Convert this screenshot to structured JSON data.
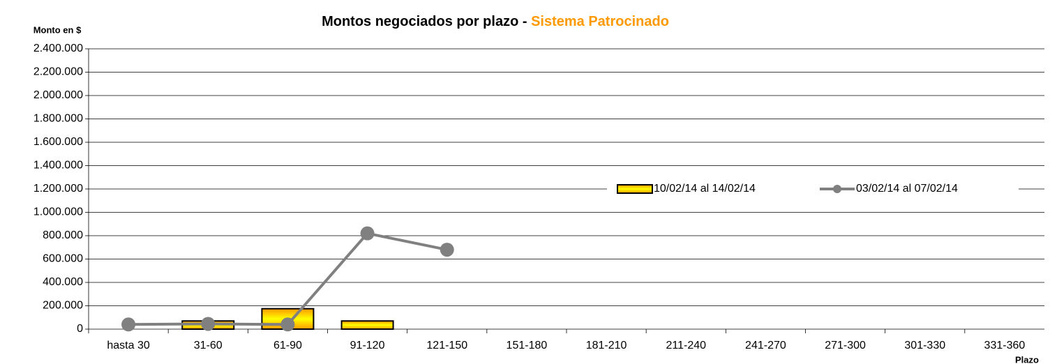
{
  "chart_data": {
    "type": "bar_line",
    "title": "Montos negociados por plazo -",
    "title_highlight": "Sistema Patrocinado",
    "title_highlight_color": "#ff9900",
    "y_label": "Monto en $",
    "x_label": "Plazo",
    "categories": [
      "hasta 30",
      "31-60",
      "61-90",
      "91-120",
      "121-150",
      "151-180",
      "181-210",
      "211-240",
      "241-270",
      "271-300",
      "301-330",
      "331-360"
    ],
    "series": [
      {
        "name": "10/02/14 al 14/02/14",
        "type": "bar",
        "color": "#ff9900",
        "values": [
          0,
          70000,
          175000,
          70000,
          0,
          0,
          0,
          0,
          0,
          0,
          0,
          0
        ]
      },
      {
        "name": "03/02/14 al 07/02/14",
        "type": "line",
        "color": "#808080",
        "values": [
          40000,
          45000,
          40000,
          820000,
          680000,
          null,
          null,
          null,
          null,
          null,
          null,
          null
        ]
      }
    ],
    "ylim": [
      0,
      2400000
    ],
    "yticks": [
      0,
      {
        "value": 200000,
        "label": "200.000"
      },
      {
        "value": 400000,
        "label": "400.000"
      },
      {
        "value": 600000,
        "label": "600.000"
      },
      {
        "value": 800000,
        "label": "800.000"
      },
      {
        "value": 1000000,
        "label": "1.000.000"
      },
      {
        "value": 1200000,
        "label": "1.200.000"
      },
      {
        "value": 1400000,
        "label": "1.400.000"
      },
      {
        "value": 1600000,
        "label": "1.600.000"
      },
      {
        "value": 1800000,
        "label": "1.800.000"
      },
      {
        "value": 2000000,
        "label": "2.000.000"
      },
      {
        "value": 2200000,
        "label": "2.200.000"
      },
      {
        "value": 2400000,
        "label": "2.400.000"
      }
    ],
    "grid": true,
    "legend": "right"
  }
}
